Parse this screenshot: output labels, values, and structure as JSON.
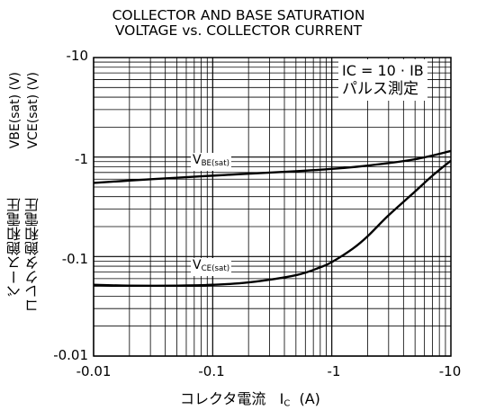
{
  "chart_data": {
    "type": "line",
    "title_line1": "COLLECTOR AND BASE SATURATION",
    "title_line2": "VOLTAGE vs. COLLECTOR CURRENT",
    "xlabel_jp": "コレクタ電流",
    "xlabel_sym_main": "I",
    "xlabel_sym_sub": "C",
    "xlabel_unit": "(A)",
    "ylabel_jp_1": "ベース飽和電圧",
    "ylabel_jp_2": "コレクタ飽和電圧",
    "ylabel_sym_1": "VBE(sat) (V)",
    "ylabel_sym_2": "VCE(sat) (V)",
    "x_scale": "log",
    "y_scale": "log",
    "x_range": [
      -0.01,
      -10
    ],
    "y_range": [
      -0.01,
      -10
    ],
    "x_ticks": [
      "-0.01",
      "-0.1",
      "-1",
      "-10"
    ],
    "y_ticks": [
      "-10",
      "-1",
      "-0.1",
      "-0.01"
    ],
    "grid": true,
    "condition_line1": "IC = 10 · IB",
    "condition_line2": "パルス測定",
    "series": [
      {
        "name": "VBE(sat)",
        "x": [
          -0.01,
          -0.02,
          -0.05,
          -0.1,
          -0.2,
          -0.5,
          -1,
          -2,
          -5,
          -10
        ],
        "y": [
          -0.55,
          -0.58,
          -0.62,
          -0.65,
          -0.68,
          -0.72,
          -0.76,
          -0.82,
          -0.95,
          -1.15
        ]
      },
      {
        "name": "VCE(sat)",
        "x": [
          -0.01,
          -0.02,
          -0.05,
          -0.1,
          -0.2,
          -0.5,
          -0.8,
          -1,
          -1.5,
          -2,
          -3,
          -5,
          -7,
          -10
        ],
        "y": [
          -0.052,
          -0.051,
          -0.051,
          -0.052,
          -0.055,
          -0.065,
          -0.078,
          -0.088,
          -0.12,
          -0.16,
          -0.26,
          -0.45,
          -0.65,
          -0.92
        ]
      }
    ],
    "series_labels": [
      {
        "main": "V",
        "sub": "BE(sat)"
      },
      {
        "main": "V",
        "sub": "CE(sat)"
      }
    ]
  }
}
